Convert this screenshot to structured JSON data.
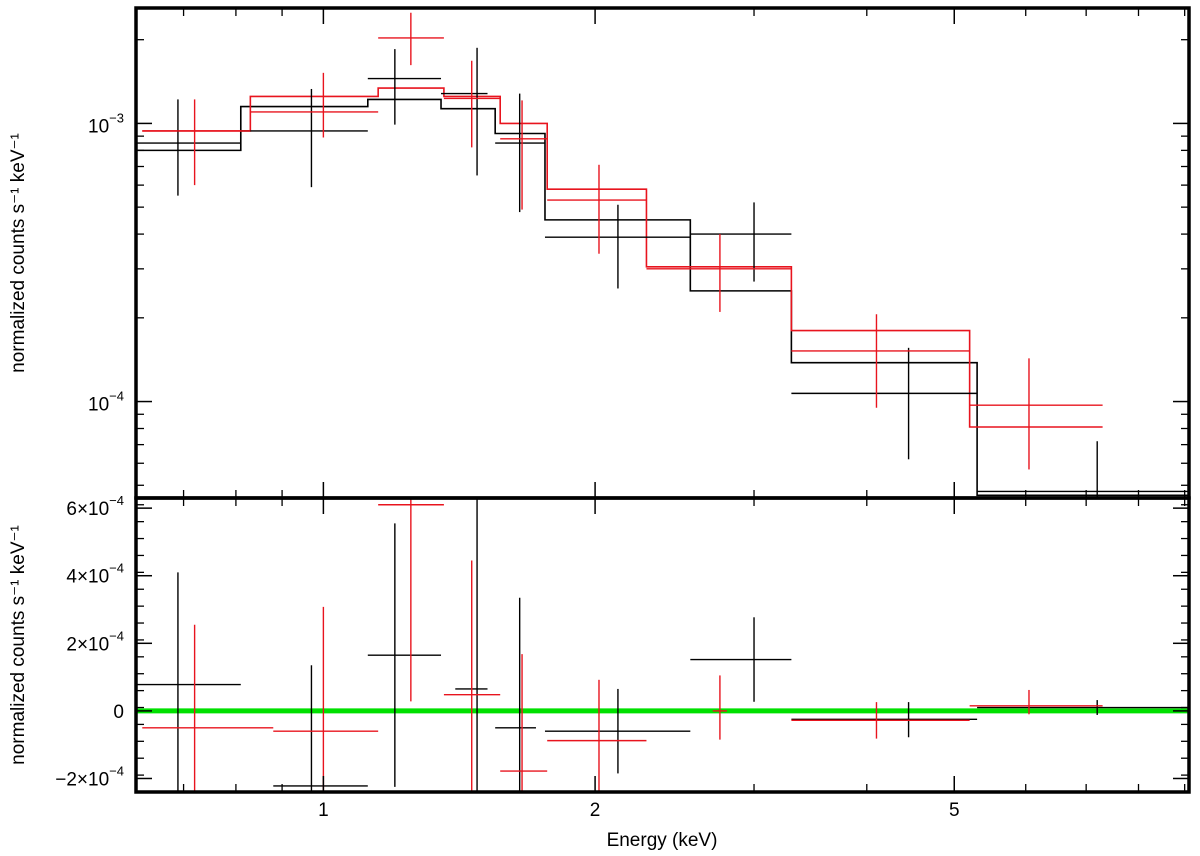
{
  "chart_data": [
    {
      "type": "scatter",
      "panel": "spectrum",
      "ylabel": "normalized counts s⁻¹ keV⁻¹",
      "xscale": "log",
      "yscale": "log",
      "xlim": [
        0.62,
        9.1
      ],
      "ylim": [
        4.5e-05,
        0.0026
      ],
      "ytick_labels": [
        {
          "value": 0.001,
          "mantissa": "10",
          "exp": "−3"
        },
        {
          "value": 0.0001,
          "mantissa": "10",
          "exp": "−4"
        }
      ],
      "colors": {
        "black": "#000000",
        "red": "#e8141e"
      },
      "series": [
        {
          "color": "black",
          "points": [
            {
              "x": 0.69,
              "xlo": 0.62,
              "xhi": 0.81,
              "y": 0.00085,
              "ylo": 0.00055,
              "yhi": 0.00122
            },
            {
              "x": 0.97,
              "xlo": 0.81,
              "xhi": 1.12,
              "y": 0.00094,
              "ylo": 0.00059,
              "yhi": 0.00133
            },
            {
              "x": 1.2,
              "xlo": 1.12,
              "xhi": 1.35,
              "y": 0.00145,
              "ylo": 0.00099,
              "yhi": 0.00185
            },
            {
              "x": 1.48,
              "xlo": 1.35,
              "xhi": 1.52,
              "y": 0.00128,
              "ylo": 0.00065,
              "yhi": 0.00187
            },
            {
              "x": 1.65,
              "xlo": 1.55,
              "xhi": 1.76,
              "y": 0.00085,
              "ylo": 0.00048,
              "yhi": 0.00128
            },
            {
              "x": 2.12,
              "xlo": 1.76,
              "xhi": 2.55,
              "y": 0.00039,
              "ylo": 0.000255,
              "yhi": 0.00051
            },
            {
              "x": 3.0,
              "xlo": 2.55,
              "xhi": 3.3,
              "y": 0.0004,
              "ylo": 0.00027,
              "yhi": 0.00052
            },
            {
              "x": 4.45,
              "xlo": 3.3,
              "xhi": 5.3,
              "y": 0.000107,
              "ylo": 6.2e-05,
              "yhi": 0.000156
            },
            {
              "x": 7.2,
              "xlo": 5.3,
              "xhi": 9.1,
              "y": 4.75e-05,
              "ylo": 4.45e-05,
              "yhi": 7.2e-05
            }
          ],
          "model_steps": [
            {
              "xlo": 0.62,
              "xhi": 0.81,
              "y": 0.0008
            },
            {
              "xlo": 0.81,
              "xhi": 1.12,
              "y": 0.00115
            },
            {
              "xlo": 1.12,
              "xhi": 1.35,
              "y": 0.00122
            },
            {
              "xlo": 1.35,
              "xhi": 1.55,
              "y": 0.00113
            },
            {
              "xlo": 1.55,
              "xhi": 1.76,
              "y": 0.00092
            },
            {
              "xlo": 1.76,
              "xhi": 2.55,
              "y": 0.00045
            },
            {
              "xlo": 2.55,
              "xhi": 3.3,
              "y": 0.00025
            },
            {
              "xlo": 3.3,
              "xhi": 5.3,
              "y": 0.000138
            },
            {
              "xlo": 5.3,
              "xhi": 9.1,
              "y": 4.6e-05
            }
          ]
        },
        {
          "color": "red",
          "points": [
            {
              "x": 0.72,
              "xlo": 0.63,
              "xhi": 0.83,
              "y": 0.00094,
              "ylo": 0.0006,
              "yhi": 0.00122
            },
            {
              "x": 1.0,
              "xlo": 0.83,
              "xhi": 1.15,
              "y": 0.0011,
              "ylo": 0.00089,
              "yhi": 0.00152
            },
            {
              "x": 1.25,
              "xlo": 1.15,
              "xhi": 1.36,
              "y": 0.00203,
              "ylo": 0.00162,
              "yhi": 0.0025
            },
            {
              "x": 1.46,
              "xlo": 1.36,
              "xhi": 1.57,
              "y": 0.00123,
              "ylo": 0.00082,
              "yhi": 0.00168
            },
            {
              "x": 1.66,
              "xlo": 1.57,
              "xhi": 1.77,
              "y": 0.00088,
              "ylo": 0.00049,
              "yhi": 0.00121
            },
            {
              "x": 2.02,
              "xlo": 1.77,
              "xhi": 2.28,
              "y": 0.00053,
              "ylo": 0.00034,
              "yhi": 0.00071
            },
            {
              "x": 2.75,
              "xlo": 2.28,
              "xhi": 3.3,
              "y": 0.0003,
              "ylo": 0.00021,
              "yhi": 0.0004
            },
            {
              "x": 4.1,
              "xlo": 3.3,
              "xhi": 5.2,
              "y": 0.000152,
              "ylo": 9.5e-05,
              "yhi": 0.000206
            },
            {
              "x": 6.05,
              "xlo": 5.2,
              "xhi": 7.3,
              "y": 9.7e-05,
              "ylo": 5.7e-05,
              "yhi": 0.000143
            }
          ],
          "model_steps": [
            {
              "xlo": 0.63,
              "xhi": 0.83,
              "y": 0.00094
            },
            {
              "xlo": 0.83,
              "xhi": 1.15,
              "y": 0.00125
            },
            {
              "xlo": 1.15,
              "xhi": 1.36,
              "y": 0.00134
            },
            {
              "xlo": 1.36,
              "xhi": 1.57,
              "y": 0.00125
            },
            {
              "xlo": 1.57,
              "xhi": 1.77,
              "y": 0.001
            },
            {
              "xlo": 1.77,
              "xhi": 2.28,
              "y": 0.00058
            },
            {
              "xlo": 2.28,
              "xhi": 3.3,
              "y": 0.000305
            },
            {
              "xlo": 3.3,
              "xhi": 5.2,
              "y": 0.00018
            },
            {
              "xlo": 5.2,
              "xhi": 7.3,
              "y": 8.1e-05
            }
          ]
        }
      ]
    },
    {
      "type": "scatter",
      "panel": "residuals",
      "xlabel": "Energy (keV)",
      "ylabel": "normalized counts s⁻¹ keV⁻¹",
      "xscale": "log",
      "xlim": [
        0.62,
        9.1
      ],
      "ylim": [
        -0.00024,
        0.00063
      ],
      "xtick_labels": [
        {
          "value": 1,
          "label": "1"
        },
        {
          "value": 2,
          "label": "2"
        },
        {
          "value": 5,
          "label": "5"
        }
      ],
      "ytick_labels": [
        {
          "value": 0.0006,
          "mantissa": "6×10",
          "exp": "−4"
        },
        {
          "value": 0.0004,
          "mantissa": "4×10",
          "exp": "−4"
        },
        {
          "value": 0.0002,
          "mantissa": "2×10",
          "exp": "−4"
        },
        {
          "value": 0,
          "mantissa": "0",
          "exp": ""
        },
        {
          "value": -0.0002,
          "mantissa": "−2×10",
          "exp": "−4"
        }
      ],
      "zero_line_color": "#00e000",
      "series": [
        {
          "color": "black",
          "points": [
            {
              "x": 0.69,
              "xlo": 0.62,
              "xhi": 0.81,
              "y": 7.8e-05,
              "ylo": -0.00024,
              "yhi": 0.00041
            },
            {
              "x": 0.97,
              "xlo": 0.88,
              "xhi": 1.12,
              "y": -0.000222,
              "ylo": -0.00024,
              "yhi": 0.000135
            },
            {
              "x": 1.2,
              "xlo": 1.12,
              "xhi": 1.35,
              "y": 0.000165,
              "ylo": -0.000225,
              "yhi": 0.000555
            },
            {
              "x": 1.48,
              "xlo": 1.4,
              "xhi": 1.52,
              "y": 6.5e-05,
              "ylo": -0.00024,
              "yhi": 0.00063
            },
            {
              "x": 1.65,
              "xlo": 1.55,
              "xhi": 1.72,
              "y": -5e-05,
              "ylo": -0.00024,
              "yhi": 0.000335
            },
            {
              "x": 2.12,
              "xlo": 1.76,
              "xhi": 2.55,
              "y": -6e-05,
              "ylo": -0.000185,
              "yhi": 6.5e-05
            },
            {
              "x": 3.0,
              "xlo": 2.55,
              "xhi": 3.3,
              "y": 0.000152,
              "ylo": 2.7e-05,
              "yhi": 0.000277
            },
            {
              "x": 4.45,
              "xlo": 3.3,
              "xhi": 5.3,
              "y": -2.5e-05,
              "ylo": -7.8e-05,
              "yhi": 2.6e-05
            },
            {
              "x": 7.2,
              "xlo": 5.3,
              "xhi": 9.1,
              "y": 1e-05,
              "ylo": -1.2e-05,
              "yhi": 3.2e-05
            }
          ]
        },
        {
          "color": "red",
          "points": [
            {
              "x": 0.72,
              "xlo": 0.63,
              "xhi": 0.88,
              "y": -5e-05,
              "ylo": -0.00024,
              "yhi": 0.000255
            },
            {
              "x": 1.0,
              "xlo": 0.88,
              "xhi": 1.15,
              "y": -6e-05,
              "ylo": -0.00024,
              "yhi": 0.000308
            },
            {
              "x": 1.25,
              "xlo": 1.15,
              "xhi": 1.36,
              "y": 0.00061,
              "ylo": 2.8e-05,
              "yhi": 0.00063
            },
            {
              "x": 1.46,
              "xlo": 1.36,
              "xhi": 1.57,
              "y": 4.8e-05,
              "ylo": -0.00024,
              "yhi": 0.000445
            },
            {
              "x": 1.66,
              "xlo": 1.57,
              "xhi": 1.77,
              "y": -0.000178,
              "ylo": -0.00024,
              "yhi": 0.000168
            },
            {
              "x": 2.02,
              "xlo": 1.77,
              "xhi": 2.28,
              "y": -8.8e-05,
              "ylo": -0.00024,
              "yhi": 9.2e-05
            },
            {
              "x": 2.75,
              "xlo": 2.7,
              "xhi": 2.8,
              "y": 0.0,
              "ylo": -8.5e-05,
              "yhi": 0.000105
            },
            {
              "x": 4.1,
              "xlo": 3.3,
              "xhi": 5.2,
              "y": -2.8e-05,
              "ylo": -8.2e-05,
              "yhi": 2.6e-05
            },
            {
              "x": 6.05,
              "xlo": 5.2,
              "xhi": 7.3,
              "y": 1.5e-05,
              "ylo": -1e-05,
              "yhi": 6.2e-05
            }
          ]
        }
      ]
    }
  ]
}
